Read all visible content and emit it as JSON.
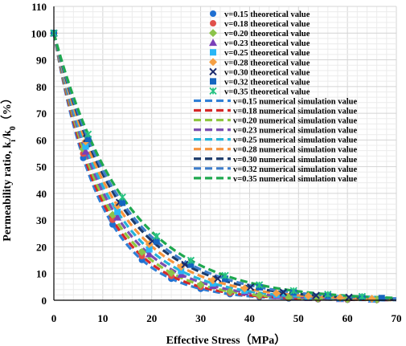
{
  "chart_data": {
    "type": "scatter",
    "xlabel": "Effective Stress（MPa）",
    "ylabel": "Permeability ratio, k",
    "ylabel_sub1": "i",
    "ylabel_mid": "/k",
    "ylabel_sub2": "0",
    "ylabel_end": "（%）",
    "xlim": [
      0,
      70
    ],
    "ylim": [
      0,
      110
    ],
    "xticks": [
      "0",
      "10",
      "20",
      "30",
      "40",
      "50",
      "60",
      "70"
    ],
    "yticks": [
      "0",
      "10",
      "20",
      "30",
      "40",
      "50",
      "60",
      "70",
      "80",
      "90",
      "100",
      "110"
    ],
    "grid": true,
    "legend_position": "top-right",
    "theoretical_series": [
      {
        "name": "v=0.15 theoretical value",
        "color": "#1f6fd1",
        "marker": "circle",
        "kappa": 0.105,
        "x": [
          0,
          6,
          12,
          18,
          24,
          30,
          36,
          42,
          48,
          54,
          60,
          66
        ]
      },
      {
        "name": "v=0.18 theoretical value",
        "color": "#e0504a",
        "marker": "circle",
        "kappa": 0.1,
        "x": [
          0,
          6,
          12,
          18,
          24,
          30,
          36,
          42,
          48,
          54,
          60,
          66
        ]
      },
      {
        "name": "v=0.20 theoretical value",
        "color": "#8bc34a",
        "marker": "diamond",
        "kappa": 0.095,
        "x": [
          0,
          6,
          12,
          18,
          24,
          30,
          36,
          42,
          48,
          54,
          60,
          66
        ]
      },
      {
        "name": "v=0.23 theoretical value",
        "color": "#7a3fb8",
        "marker": "triangle",
        "kappa": 0.09,
        "x": [
          0,
          6.5,
          13,
          19.5,
          26,
          32.5,
          39,
          45.5,
          52,
          58.5,
          65
        ]
      },
      {
        "name": "v=0.25 theoretical value",
        "color": "#29b6f6",
        "marker": "square",
        "kappa": 0.085,
        "x": [
          0,
          6.5,
          13,
          19.5,
          26,
          32.5,
          39,
          45.5,
          52,
          58.5,
          65
        ]
      },
      {
        "name": "v=0.28 theoretical value",
        "color": "#f5a045",
        "marker": "diamond",
        "kappa": 0.08,
        "x": [
          0,
          6.5,
          13,
          19.5,
          26,
          32.5,
          39,
          45.5,
          52,
          58.5,
          65
        ]
      },
      {
        "name": "v=0.30 theoretical value",
        "color": "#1a2a6c",
        "marker": "x",
        "kappa": 0.075,
        "x": [
          0,
          6.7,
          13.4,
          20.1,
          26.8,
          33.5,
          40.2,
          46.9,
          53.6,
          60.3
        ]
      },
      {
        "name": "v=0.32 theoretical value",
        "color": "#1565c0",
        "marker": "square",
        "kappa": 0.072,
        "x": [
          0,
          7,
          14,
          21,
          28,
          35,
          42,
          49,
          56,
          63,
          67
        ]
      },
      {
        "name": "v=0.35 theoretical value",
        "color": "#26c281",
        "marker": "star",
        "kappa": 0.068,
        "x": [
          0,
          7,
          14,
          21,
          28,
          35,
          42,
          49,
          56,
          63
        ]
      }
    ],
    "numerical_series": [
      {
        "name": "v=0.15 numerical simulation value",
        "color": "#2f7fd6",
        "kappa": 0.105
      },
      {
        "name": "v=0.18 numerical simulation value",
        "color": "#d62828",
        "kappa": 0.1
      },
      {
        "name": "v=0.20 numerical simulation value",
        "color": "#8dc63f",
        "kappa": 0.095
      },
      {
        "name": "v=0.23 numerical simulation value",
        "color": "#7b4fb0",
        "kappa": 0.09
      },
      {
        "name": "v=0.25 numerical simulation value",
        "color": "#26b3d9",
        "kappa": 0.085
      },
      {
        "name": "v=0.28 numerical simulation value",
        "color": "#f7943c",
        "kappa": 0.08
      },
      {
        "name": "v=0.30 numerical simulation value",
        "color": "#1c3b6b",
        "kappa": 0.075
      },
      {
        "name": "v=0.32 numerical simulation value",
        "color": "#3d7cc9",
        "kappa": 0.072
      },
      {
        "name": "v=0.35 numerical simulation value",
        "color": "#1fa84f",
        "kappa": 0.068
      }
    ]
  }
}
